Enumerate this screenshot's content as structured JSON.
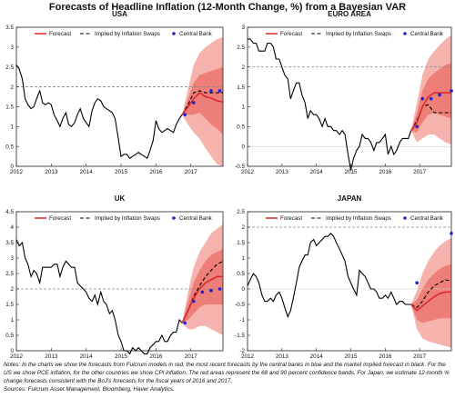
{
  "title": "Forecasts of Headline Inflation (12-Month Change, %) from a Bayesian VAR",
  "notes": {
    "line1": "Notes: In the charts we show the forecasts from Fulcrum models in red, the most recent forecasts by the central banks in blue and the market implied forecast in black. For the US we show PCE inflation, for the other countries we show CPI inflation. The red areas represent the 68 and 90 percent confidence bands. For Japan, we estimate 12-month % change forecasts consistent with the BoJ's forecasts for the fiscal years of 2016 and 2017.",
    "sources": "Sources: Fulcrum Asset Management, Bloomberg, Haver Analytics."
  },
  "legend": {
    "forecast": "Forecast",
    "swaps": "Implied by Inflation Swaps",
    "central_bank": "Central Bank"
  },
  "colors": {
    "forecast": "#d62728",
    "band90": "#f6b3ad",
    "band68": "#ee7f78",
    "central_bank": "#2222cc",
    "actual": "#000000",
    "reference": "#888888"
  },
  "chart_data": [
    {
      "type": "line",
      "title": "USA",
      "xlim": [
        2012,
        2017.92
      ],
      "ylim": [
        0,
        3.5
      ],
      "yticks": [
        "0",
        "0.5",
        "1",
        "1.5",
        "2",
        "2.5",
        "3",
        "3.5"
      ],
      "yvals": [
        0,
        0.5,
        1,
        1.5,
        2,
        2.5,
        3,
        3.5
      ],
      "xticks": [
        "2012",
        "2013",
        "2014",
        "2015",
        "2016",
        "2017"
      ],
      "reference_line": 2,
      "grid": false,
      "legend_position": "top",
      "actual": {
        "x": [
          2012.0,
          2012.08,
          2012.17,
          2012.25,
          2012.33,
          2012.42,
          2012.5,
          2012.58,
          2012.67,
          2012.75,
          2012.83,
          2012.92,
          2013.0,
          2013.08,
          2013.17,
          2013.25,
          2013.33,
          2013.42,
          2013.5,
          2013.58,
          2013.67,
          2013.75,
          2013.83,
          2013.92,
          2014.0,
          2014.08,
          2014.17,
          2014.25,
          2014.33,
          2014.42,
          2014.5,
          2014.58,
          2014.67,
          2014.75,
          2014.83,
          2014.92,
          2015.0,
          2015.08,
          2015.17,
          2015.25,
          2015.33,
          2015.42,
          2015.5,
          2015.58,
          2015.67,
          2015.75,
          2015.83,
          2015.92,
          2016.0,
          2016.08,
          2016.17,
          2016.25,
          2016.33,
          2016.42,
          2016.5,
          2016.58,
          2016.67,
          2016.75
        ],
        "y": [
          2.55,
          2.45,
          2.2,
          1.7,
          1.55,
          1.45,
          1.5,
          1.7,
          1.9,
          1.6,
          1.55,
          1.6,
          1.55,
          1.3,
          1.15,
          1.0,
          1.2,
          1.35,
          1.05,
          1.0,
          1.1,
          1.3,
          1.45,
          1.2,
          1.1,
          1.0,
          1.4,
          1.6,
          1.7,
          1.65,
          1.5,
          1.45,
          1.4,
          1.35,
          1.2,
          0.7,
          0.25,
          0.3,
          0.3,
          0.2,
          0.25,
          0.3,
          0.35,
          0.3,
          0.25,
          0.2,
          0.4,
          0.65,
          1.15,
          0.95,
          0.85,
          0.9,
          0.95,
          0.9,
          0.85,
          1.05,
          1.2,
          1.3
        ]
      },
      "forecast": {
        "x": [
          2016.75,
          2016.92,
          2017.08,
          2017.25,
          2017.42,
          2017.58,
          2017.75,
          2017.92
        ],
        "y": [
          1.3,
          1.5,
          1.7,
          1.85,
          1.75,
          1.72,
          1.65,
          1.62
        ]
      },
      "band68": {
        "x": [
          2016.75,
          2016.92,
          2017.08,
          2017.25,
          2017.42,
          2017.58,
          2017.75,
          2017.92
        ],
        "upper": [
          1.3,
          1.7,
          2.1,
          2.3,
          2.35,
          2.4,
          2.45,
          2.5
        ],
        "lower": [
          1.3,
          1.3,
          1.3,
          1.35,
          1.2,
          1.05,
          0.95,
          0.8
        ]
      },
      "band90": {
        "x": [
          2016.75,
          2016.92,
          2017.08,
          2017.25,
          2017.42,
          2017.58,
          2017.75,
          2017.92
        ],
        "upper": [
          1.3,
          1.95,
          2.55,
          2.85,
          3.0,
          3.1,
          3.2,
          3.25
        ],
        "lower": [
          1.3,
          1.05,
          0.85,
          0.7,
          0.45,
          0.25,
          0.05,
          0.0
        ]
      },
      "swaps": {
        "x": [
          2016.75,
          2016.92,
          2017.08,
          2017.25,
          2017.42,
          2017.58,
          2017.75,
          2017.92
        ],
        "y": [
          1.3,
          1.55,
          1.85,
          1.9,
          1.85,
          1.85,
          1.85,
          1.85
        ]
      },
      "central_bank": {
        "x": [
          2016.83,
          2017.08,
          2017.58,
          2017.83
        ],
        "y": [
          1.3,
          1.6,
          1.9,
          1.9
        ]
      }
    },
    {
      "type": "line",
      "title": "EURO AREA",
      "xlim": [
        2012,
        2017.92
      ],
      "ylim": [
        -0.5,
        3
      ],
      "yticks": [
        "-0.5",
        "0",
        "0.5",
        "1",
        "1.5",
        "2",
        "2.5",
        "3"
      ],
      "yvals": [
        -0.5,
        0,
        0.5,
        1,
        1.5,
        2,
        2.5,
        3
      ],
      "xticks": [
        "2012",
        "2013",
        "2014",
        "2015",
        "2016",
        "2017"
      ],
      "reference_line": 2,
      "grid": false,
      "legend_position": "top",
      "actual": {
        "x": [
          2012.0,
          2012.08,
          2012.17,
          2012.25,
          2012.33,
          2012.42,
          2012.5,
          2012.58,
          2012.67,
          2012.75,
          2012.83,
          2012.92,
          2013.0,
          2013.08,
          2013.17,
          2013.25,
          2013.33,
          2013.42,
          2013.5,
          2013.58,
          2013.67,
          2013.75,
          2013.83,
          2013.92,
          2014.0,
          2014.08,
          2014.17,
          2014.25,
          2014.33,
          2014.42,
          2014.5,
          2014.58,
          2014.67,
          2014.75,
          2014.83,
          2014.92,
          2015.0,
          2015.08,
          2015.17,
          2015.25,
          2015.33,
          2015.42,
          2015.5,
          2015.58,
          2015.67,
          2015.75,
          2015.83,
          2015.92,
          2016.0,
          2016.08,
          2016.17,
          2016.25,
          2016.33,
          2016.42,
          2016.5,
          2016.58,
          2016.67,
          2016.75
        ],
        "y": [
          2.7,
          2.7,
          2.6,
          2.6,
          2.4,
          2.4,
          2.4,
          2.6,
          2.6,
          2.5,
          2.2,
          2.2,
          2.0,
          1.8,
          1.7,
          1.2,
          1.4,
          1.6,
          1.6,
          1.3,
          1.1,
          0.7,
          0.9,
          0.8,
          0.8,
          0.7,
          0.5,
          0.7,
          0.5,
          0.5,
          0.4,
          0.4,
          0.3,
          0.4,
          0.3,
          -0.2,
          -0.6,
          -0.3,
          -0.1,
          0.0,
          0.3,
          0.2,
          0.2,
          0.1,
          -0.1,
          0.1,
          0.1,
          0.2,
          0.3,
          -0.2,
          0.0,
          -0.2,
          -0.1,
          0.1,
          0.2,
          0.2,
          0.2,
          0.4
        ]
      },
      "forecast": {
        "x": [
          2016.75,
          2016.92,
          2017.08,
          2017.25,
          2017.42,
          2017.58,
          2017.75,
          2017.92
        ],
        "y": [
          0.4,
          0.6,
          1.0,
          1.25,
          1.35,
          1.35,
          1.35,
          1.35
        ]
      },
      "band68": {
        "x": [
          2016.75,
          2016.92,
          2017.08,
          2017.25,
          2017.42,
          2017.58,
          2017.75,
          2017.92
        ],
        "upper": [
          0.4,
          0.85,
          1.4,
          1.7,
          1.85,
          1.95,
          2.05,
          2.1
        ],
        "lower": [
          0.4,
          0.35,
          0.6,
          0.8,
          0.85,
          0.8,
          0.75,
          0.7
        ]
      },
      "band90": {
        "x": [
          2016.75,
          2016.92,
          2017.08,
          2017.25,
          2017.42,
          2017.58,
          2017.75,
          2017.92
        ],
        "upper": [
          0.4,
          1.1,
          1.8,
          2.2,
          2.4,
          2.55,
          2.7,
          2.8
        ],
        "lower": [
          0.4,
          0.1,
          0.2,
          0.3,
          0.3,
          0.2,
          0.1,
          0.05
        ]
      },
      "swaps": {
        "x": [
          2016.75,
          2016.92,
          2017.08,
          2017.25,
          2017.42,
          2017.58,
          2017.75,
          2017.92
        ],
        "y": [
          0.4,
          0.65,
          1.0,
          1.05,
          0.85,
          0.85,
          0.85,
          0.85
        ]
      },
      "central_bank": {
        "x": [
          2016.92,
          2017.08,
          2017.33,
          2017.58,
          2017.92
        ],
        "y": [
          0.5,
          1.2,
          1.2,
          1.3,
          1.4
        ]
      }
    },
    {
      "type": "line",
      "title": "UK",
      "xlim": [
        2012,
        2017.92
      ],
      "ylim": [
        0,
        4.5
      ],
      "yticks": [
        "0",
        "0.5",
        "1",
        "1.5",
        "2",
        "2.5",
        "3",
        "3.5",
        "4",
        "4.5"
      ],
      "yvals": [
        0,
        0.5,
        1,
        1.5,
        2,
        2.5,
        3,
        3.5,
        4,
        4.5
      ],
      "xticks": [
        "2012",
        "2013",
        "2014",
        "2015",
        "2016",
        "2017"
      ],
      "reference_line": 2,
      "grid": false,
      "legend_position": "top",
      "actual": {
        "x": [
          2012.0,
          2012.08,
          2012.17,
          2012.25,
          2012.33,
          2012.42,
          2012.5,
          2012.58,
          2012.67,
          2012.75,
          2012.83,
          2012.92,
          2013.0,
          2013.08,
          2013.17,
          2013.25,
          2013.33,
          2013.42,
          2013.5,
          2013.58,
          2013.67,
          2013.75,
          2013.83,
          2013.92,
          2014.0,
          2014.08,
          2014.17,
          2014.25,
          2014.33,
          2014.42,
          2014.5,
          2014.58,
          2014.67,
          2014.75,
          2014.83,
          2014.92,
          2015.0,
          2015.08,
          2015.17,
          2015.25,
          2015.33,
          2015.42,
          2015.5,
          2015.58,
          2015.67,
          2015.75,
          2015.83,
          2015.92,
          2016.0,
          2016.08,
          2016.17,
          2016.25,
          2016.33,
          2016.42,
          2016.5,
          2016.58,
          2016.67,
          2016.75
        ],
        "y": [
          3.6,
          3.4,
          3.5,
          3.0,
          2.8,
          2.4,
          2.6,
          2.5,
          2.2,
          2.7,
          2.7,
          2.7,
          2.7,
          2.8,
          2.8,
          2.4,
          2.7,
          2.9,
          2.8,
          2.7,
          2.7,
          2.2,
          2.1,
          2.0,
          1.9,
          1.7,
          1.6,
          1.8,
          1.5,
          1.9,
          1.6,
          1.5,
          1.2,
          1.3,
          1.0,
          0.5,
          0.3,
          0.0,
          0.0,
          -0.1,
          0.1,
          0.0,
          0.1,
          0.0,
          -0.1,
          -0.1,
          0.1,
          0.2,
          0.3,
          0.3,
          0.5,
          0.3,
          0.3,
          0.5,
          0.6,
          0.6,
          1.0,
          0.9
        ]
      },
      "forecast": {
        "x": [
          2016.75,
          2016.92,
          2017.08,
          2017.25,
          2017.42,
          2017.58,
          2017.75,
          2017.92
        ],
        "y": [
          0.9,
          1.3,
          1.7,
          2.0,
          2.2,
          2.3,
          2.4,
          2.4
        ]
      },
      "band68": {
        "x": [
          2016.75,
          2016.92,
          2017.08,
          2017.25,
          2017.42,
          2017.58,
          2017.75,
          2017.92
        ],
        "upper": [
          0.9,
          1.6,
          2.2,
          2.6,
          2.9,
          3.1,
          3.2,
          3.3
        ],
        "lower": [
          0.9,
          1.0,
          1.2,
          1.4,
          1.5,
          1.5,
          1.5,
          1.5
        ]
      },
      "band90": {
        "x": [
          2016.75,
          2016.92,
          2017.08,
          2017.25,
          2017.42,
          2017.58,
          2017.75,
          2017.92
        ],
        "upper": [
          0.9,
          1.9,
          2.7,
          3.2,
          3.5,
          3.8,
          3.95,
          4.1
        ],
        "lower": [
          0.9,
          0.7,
          0.7,
          0.8,
          0.8,
          0.7,
          0.6,
          0.5
        ]
      },
      "swaps": {
        "x": [
          2016.75,
          2016.92,
          2017.08,
          2017.25,
          2017.42,
          2017.58,
          2017.75,
          2017.92
        ],
        "y": [
          0.9,
          1.3,
          1.75,
          2.1,
          2.4,
          2.6,
          2.8,
          2.9
        ]
      },
      "central_bank": {
        "x": [
          2016.83,
          2017.08,
          2017.33,
          2017.58,
          2017.83
        ],
        "y": [
          0.9,
          1.6,
          1.9,
          1.95,
          2.0
        ]
      }
    },
    {
      "type": "line",
      "title": "JAPAN",
      "xlim": [
        2012,
        2017.92
      ],
      "ylim": [
        -2,
        2.5
      ],
      "yticks": [
        "-2",
        "-1.5",
        "-1",
        "-0.5",
        "0",
        "0.5",
        "1",
        "1.5",
        "2",
        "2.5"
      ],
      "yvals": [
        -2,
        -1.5,
        -1,
        -0.5,
        0,
        0.5,
        1,
        1.5,
        2,
        2.5
      ],
      "xticks": [
        "2012",
        "2013",
        "2014",
        "2015",
        "2016",
        "2017"
      ],
      "reference_line": 2,
      "grid": false,
      "legend_position": "top",
      "actual": {
        "x": [
          2012.0,
          2012.08,
          2012.17,
          2012.25,
          2012.33,
          2012.42,
          2012.5,
          2012.58,
          2012.67,
          2012.75,
          2012.83,
          2012.92,
          2013.0,
          2013.08,
          2013.17,
          2013.25,
          2013.33,
          2013.42,
          2013.5,
          2013.58,
          2013.67,
          2013.75,
          2013.83,
          2013.92,
          2014.0,
          2014.08,
          2014.17,
          2014.25,
          2014.33,
          2014.42,
          2014.5,
          2014.58,
          2014.67,
          2014.75,
          2014.83,
          2014.92,
          2015.0,
          2015.08,
          2015.17,
          2015.25,
          2015.33,
          2015.42,
          2015.5,
          2015.58,
          2015.67,
          2015.75,
          2015.83,
          2015.92,
          2016.0,
          2016.08,
          2016.17,
          2016.25,
          2016.33,
          2016.42,
          2016.5,
          2016.58,
          2016.67,
          2016.75
        ],
        "y": [
          0.1,
          0.3,
          0.5,
          0.4,
          0.2,
          -0.2,
          -0.4,
          -0.4,
          -0.3,
          -0.4,
          -0.2,
          -0.1,
          -0.3,
          -0.6,
          -0.9,
          -0.7,
          -0.3,
          0.2,
          0.7,
          0.9,
          1.1,
          1.1,
          1.5,
          1.6,
          1.4,
          1.5,
          1.6,
          1.7,
          1.7,
          1.8,
          1.7,
          1.5,
          1.3,
          1.1,
          0.9,
          0.4,
          0.2,
          0.0,
          -0.2,
          0.6,
          0.5,
          0.4,
          0.2,
          0.0,
          0.0,
          -0.1,
          -0.3,
          -0.3,
          -0.2,
          -0.3,
          -0.1,
          -0.3,
          -0.5,
          -0.4,
          -0.4,
          -0.5,
          -0.5,
          -0.5
        ]
      },
      "forecast": {
        "x": [
          2016.75,
          2016.92,
          2017.08,
          2017.25,
          2017.42,
          2017.58,
          2017.75,
          2017.92
        ],
        "y": [
          -0.5,
          -0.7,
          -0.55,
          -0.4,
          -0.25,
          -0.15,
          -0.1,
          -0.1
        ]
      },
      "band68": {
        "x": [
          2016.75,
          2016.92,
          2017.08,
          2017.25,
          2017.42,
          2017.58,
          2017.75,
          2017.92
        ],
        "upper": [
          -0.5,
          -0.35,
          0.0,
          0.3,
          0.5,
          0.65,
          0.75,
          0.8
        ],
        "lower": [
          -0.5,
          -1.0,
          -1.1,
          -1.05,
          -1.0,
          -0.95,
          -0.95,
          -0.95
        ]
      },
      "band90": {
        "x": [
          2016.75,
          2016.92,
          2017.08,
          2017.25,
          2017.42,
          2017.58,
          2017.75,
          2017.92
        ],
        "upper": [
          -0.5,
          -0.05,
          0.5,
          0.9,
          1.2,
          1.4,
          1.55,
          1.65
        ],
        "lower": [
          -0.5,
          -1.3,
          -1.6,
          -1.7,
          -1.75,
          -1.8,
          -1.85,
          -1.9
        ]
      },
      "swaps": {
        "x": [
          2016.75,
          2016.92,
          2017.08,
          2017.25,
          2017.42,
          2017.58,
          2017.75,
          2017.92
        ],
        "y": [
          -0.5,
          -0.6,
          -0.4,
          -0.1,
          0.1,
          0.2,
          0.3,
          0.25
        ]
      },
      "central_bank": {
        "x": [
          2016.92,
          2017.92
        ],
        "y": [
          0.2,
          1.8
        ]
      }
    }
  ]
}
